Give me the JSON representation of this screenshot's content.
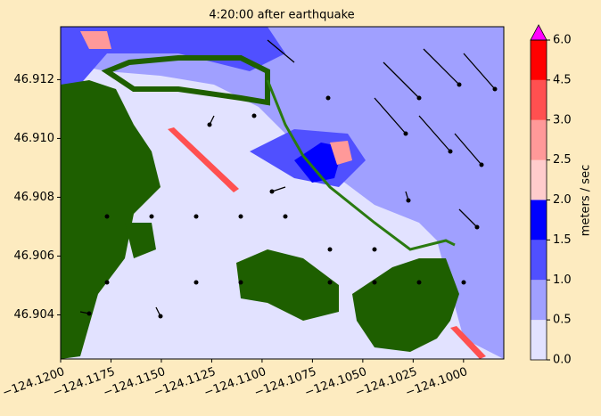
{
  "chart_data": {
    "type": "contour-map",
    "title": "4:20:00 after earthquake",
    "xlim": [
      -124.12,
      -124.098
    ],
    "ylim": [
      46.9025,
      46.9138
    ],
    "xticks": [
      {
        "value": -124.12,
        "label": "−124.1200"
      },
      {
        "value": -124.1175,
        "label": "−124.1175"
      },
      {
        "value": -124.115,
        "label": "−124.1150"
      },
      {
        "value": -124.1125,
        "label": "−124.1125"
      },
      {
        "value": -124.11,
        "label": "−124.1100"
      },
      {
        "value": -124.1075,
        "label": "−124.1075"
      },
      {
        "value": -124.105,
        "label": "−124.1050"
      },
      {
        "value": -124.1025,
        "label": "−124.1025"
      },
      {
        "value": -124.1,
        "label": "−124.1000"
      }
    ],
    "yticks": [
      46.904,
      46.906,
      46.908,
      {
        "value": 46.91,
        "label": "46.910"
      },
      46.912
    ],
    "colorbar": {
      "label": "meters / sec",
      "ticks": [
        {
          "value": 0,
          "label": "0.0"
        },
        0.5,
        {
          "value": 1,
          "label": "1.0"
        },
        1.5,
        {
          "value": 2,
          "label": "2.0"
        },
        2.5,
        {
          "value": 3,
          "label": "3.0"
        },
        4.5,
        {
          "value": 6,
          "label": "6.0"
        }
      ],
      "colors": [
        "#e2e2ff",
        "#a0a0ff",
        "#5050ff",
        "#0000ff",
        "#ffcccc",
        "#ff9999",
        "#ff5050",
        "#ff0000"
      ],
      "extend_color": "#ff00ff"
    }
  }
}
